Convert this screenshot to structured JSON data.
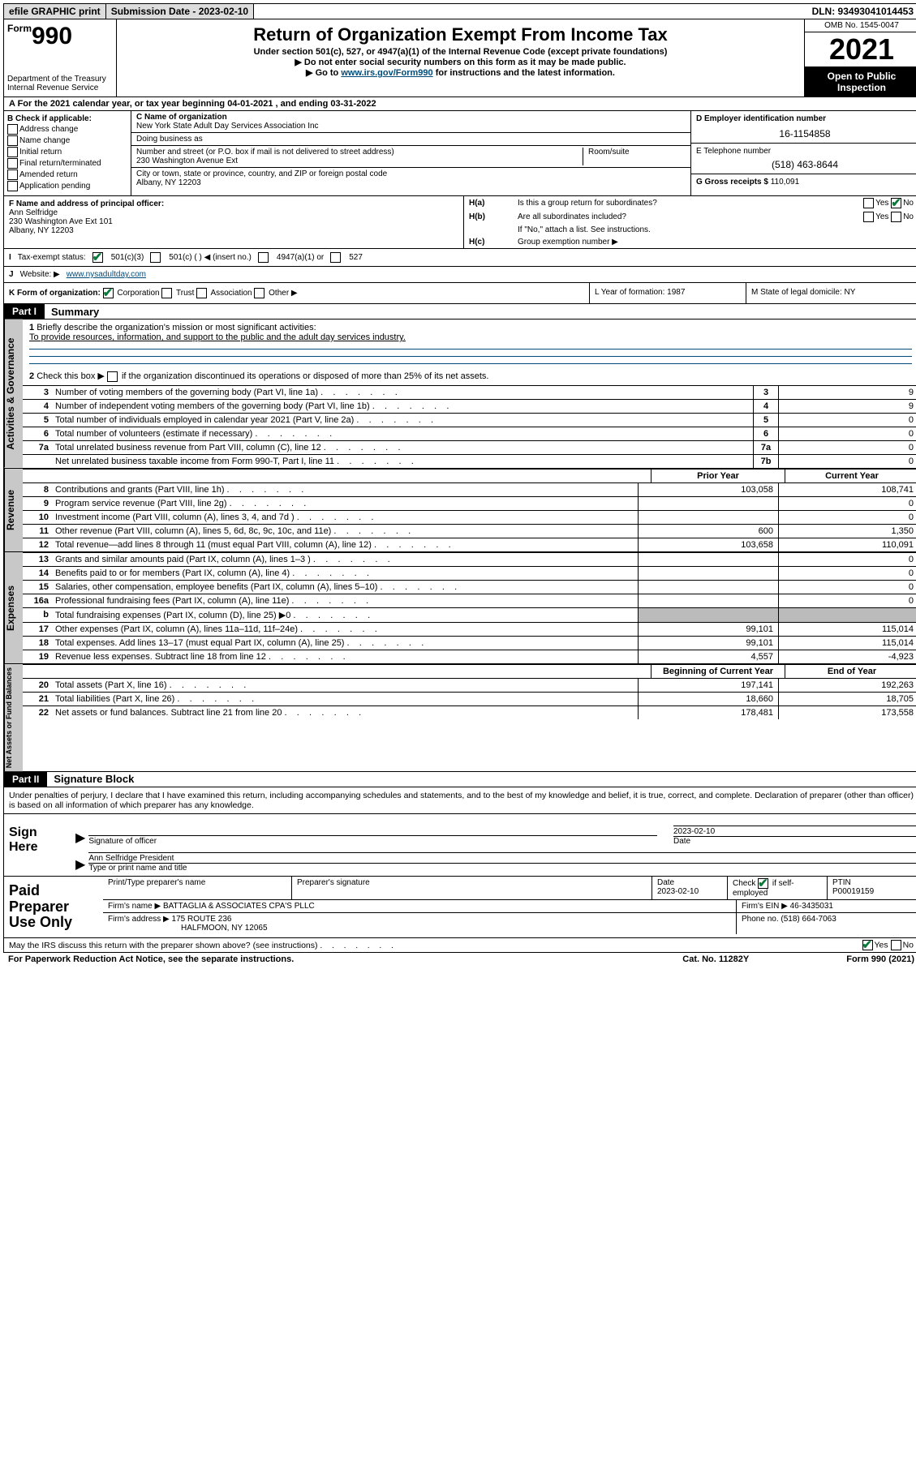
{
  "topbar": {
    "efile": "efile GRAPHIC print",
    "submission_label": "Submission Date - 2023-02-10",
    "dln": "DLN: 93493041014453"
  },
  "header": {
    "form_prefix": "Form",
    "form_number": "990",
    "title": "Return of Organization Exempt From Income Tax",
    "subtitle": "Under section 501(c), 527, or 4947(a)(1) of the Internal Revenue Code (except private foundations)",
    "note1": "▶ Do not enter social security numbers on this form as it may be made public.",
    "note2_pre": "▶ Go to ",
    "note2_link": "www.irs.gov/Form990",
    "note2_post": " for instructions and the latest information.",
    "dept": "Department of the Treasury",
    "irs": "Internal Revenue Service",
    "omb": "OMB No. 1545-0047",
    "year": "2021",
    "open": "Open to Public Inspection"
  },
  "rowA": "A For the 2021 calendar year, or tax year beginning 04-01-2021   , and ending 03-31-2022",
  "B": {
    "title": "B Check if applicable:",
    "opts": [
      "Address change",
      "Name change",
      "Initial return",
      "Final return/terminated",
      "Amended return",
      "Application pending"
    ]
  },
  "C": {
    "name_lbl": "C Name of organization",
    "name": "New York State Adult Day Services Association Inc",
    "dba_lbl": "Doing business as",
    "street_lbl": "Number and street (or P.O. box if mail is not delivered to street address)",
    "street": "230 Washington Avenue Ext",
    "suite_lbl": "Room/suite",
    "city_lbl": "City or town, state or province, country, and ZIP or foreign postal code",
    "city": "Albany, NY  12203"
  },
  "D": {
    "lbl": "D Employer identification number",
    "val": "16-1154858"
  },
  "E": {
    "lbl": "E Telephone number",
    "val": "(518) 463-8644"
  },
  "G": {
    "lbl": "G Gross receipts $",
    "val": "110,091"
  },
  "F": {
    "lbl": "F  Name and address of principal officer:",
    "name": "Ann Selfridge",
    "addr1": "230 Washington Ave Ext 101",
    "addr2": "Albany, NY  12203"
  },
  "H": {
    "a_lbl": "Is this a group return for subordinates?",
    "b_lbl": "Are all subordinates included?",
    "b_note": "If \"No,\" attach a list. See instructions.",
    "c_lbl": "Group exemption number ▶"
  },
  "I": {
    "lbl": "Tax-exempt status:",
    "o1": "501(c)(3)",
    "o2": "501(c) (   ) ◀ (insert no.)",
    "o3": "4947(a)(1) or",
    "o4": "527"
  },
  "J": {
    "lbl": "Website: ▶",
    "val": "www.nysadultday.com"
  },
  "K": {
    "lbl": "K Form of organization:",
    "o1": "Corporation",
    "o2": "Trust",
    "o3": "Association",
    "o4": "Other ▶"
  },
  "L": "L Year of formation: 1987",
  "M": "M State of legal domicile: NY",
  "partI": {
    "hdr": "Part I",
    "title": "Summary"
  },
  "summary": {
    "q1": "Briefly describe the organization's mission or most significant activities:",
    "mission": "To provide resources, information, and support to the public and the adult day services industry.",
    "q2": "Check this box ▶        if the organization discontinued its operations or disposed of more than 25% of its net assets.",
    "rows_gov": [
      {
        "n": "3",
        "d": "Number of voting members of the governing body (Part VI, line 1a)",
        "box": "3",
        "v": "9"
      },
      {
        "n": "4",
        "d": "Number of independent voting members of the governing body (Part VI, line 1b)",
        "box": "4",
        "v": "9"
      },
      {
        "n": "5",
        "d": "Total number of individuals employed in calendar year 2021 (Part V, line 2a)",
        "box": "5",
        "v": "0"
      },
      {
        "n": "6",
        "d": "Total number of volunteers (estimate if necessary)",
        "box": "6",
        "v": "0"
      },
      {
        "n": "7a",
        "d": "Total unrelated business revenue from Part VIII, column (C), line 12",
        "box": "7a",
        "v": "0"
      },
      {
        "n": "",
        "d": "Net unrelated business taxable income from Form 990-T, Part I, line 11",
        "box": "7b",
        "v": "0"
      }
    ],
    "hdr_prior": "Prior Year",
    "hdr_current": "Current Year",
    "revenue": [
      {
        "n": "8",
        "d": "Contributions and grants (Part VIII, line 1h)",
        "c1": "103,058",
        "c2": "108,741"
      },
      {
        "n": "9",
        "d": "Program service revenue (Part VIII, line 2g)",
        "c1": "",
        "c2": "0"
      },
      {
        "n": "10",
        "d": "Investment income (Part VIII, column (A), lines 3, 4, and 7d )",
        "c1": "",
        "c2": "0"
      },
      {
        "n": "11",
        "d": "Other revenue (Part VIII, column (A), lines 5, 6d, 8c, 9c, 10c, and 11e)",
        "c1": "600",
        "c2": "1,350"
      },
      {
        "n": "12",
        "d": "Total revenue—add lines 8 through 11 (must equal Part VIII, column (A), line 12)",
        "c1": "103,658",
        "c2": "110,091"
      }
    ],
    "expenses": [
      {
        "n": "13",
        "d": "Grants and similar amounts paid (Part IX, column (A), lines 1–3 )",
        "c1": "",
        "c2": "0"
      },
      {
        "n": "14",
        "d": "Benefits paid to or for members (Part IX, column (A), line 4)",
        "c1": "",
        "c2": "0"
      },
      {
        "n": "15",
        "d": "Salaries, other compensation, employee benefits (Part IX, column (A), lines 5–10)",
        "c1": "",
        "c2": "0"
      },
      {
        "n": "16a",
        "d": "Professional fundraising fees (Part IX, column (A), line 11e)",
        "c1": "",
        "c2": "0"
      },
      {
        "n": "b",
        "d": "Total fundraising expenses (Part IX, column (D), line 25) ▶0",
        "c1": "shade",
        "c2": "shade"
      },
      {
        "n": "17",
        "d": "Other expenses (Part IX, column (A), lines 11a–11d, 11f–24e)",
        "c1": "99,101",
        "c2": "115,014"
      },
      {
        "n": "18",
        "d": "Total expenses. Add lines 13–17 (must equal Part IX, column (A), line 25)",
        "c1": "99,101",
        "c2": "115,014"
      },
      {
        "n": "19",
        "d": "Revenue less expenses. Subtract line 18 from line 12",
        "c1": "4,557",
        "c2": "-4,923"
      }
    ],
    "hdr_begin": "Beginning of Current Year",
    "hdr_end": "End of Year",
    "netassets": [
      {
        "n": "20",
        "d": "Total assets (Part X, line 16)",
        "c1": "197,141",
        "c2": "192,263"
      },
      {
        "n": "21",
        "d": "Total liabilities (Part X, line 26)",
        "c1": "18,660",
        "c2": "18,705"
      },
      {
        "n": "22",
        "d": "Net assets or fund balances. Subtract line 21 from line 20",
        "c1": "178,481",
        "c2": "173,558"
      }
    ]
  },
  "side_labels": {
    "gov": "Activities & Governance",
    "rev": "Revenue",
    "exp": "Expenses",
    "net": "Net Assets or Fund Balances"
  },
  "partII": {
    "hdr": "Part II",
    "title": "Signature Block"
  },
  "perjury": "Under penalties of perjury, I declare that I have examined this return, including accompanying schedules and statements, and to the best of my knowledge and belief, it is true, correct, and complete. Declaration of preparer (other than officer) is based on all information of which preparer has any knowledge.",
  "sign": {
    "here": "Sign Here",
    "sig_lbl": "Signature of officer",
    "date_lbl": "Date",
    "date_val": "2023-02-10",
    "name": "Ann Selfridge  President",
    "name_lbl": "Type or print name and title"
  },
  "preparer": {
    "title": "Paid Preparer Use Only",
    "h1": "Print/Type preparer's name",
    "h2": "Preparer's signature",
    "h3": "Date",
    "date": "2023-02-10",
    "h4": "Check         if self-employed",
    "h5": "PTIN",
    "ptin": "P00019159",
    "firm_lbl": "Firm's name    ▶",
    "firm": "BATTAGLIA & ASSOCIATES CPA'S PLLC",
    "ein_lbl": "Firm's EIN ▶",
    "ein": "46-3435031",
    "addr_lbl": "Firm's address ▶",
    "addr1": "175 ROUTE 236",
    "addr2": "HALFMOON, NY 12065",
    "phone_lbl": "Phone no.",
    "phone": "(518) 664-7063"
  },
  "footer": {
    "discuss": "May the IRS discuss this return with the preparer shown above? (see instructions)",
    "paperwork": "For Paperwork Reduction Act Notice, see the separate instructions.",
    "cat": "Cat. No. 11282Y",
    "form": "Form 990 (2021)"
  }
}
